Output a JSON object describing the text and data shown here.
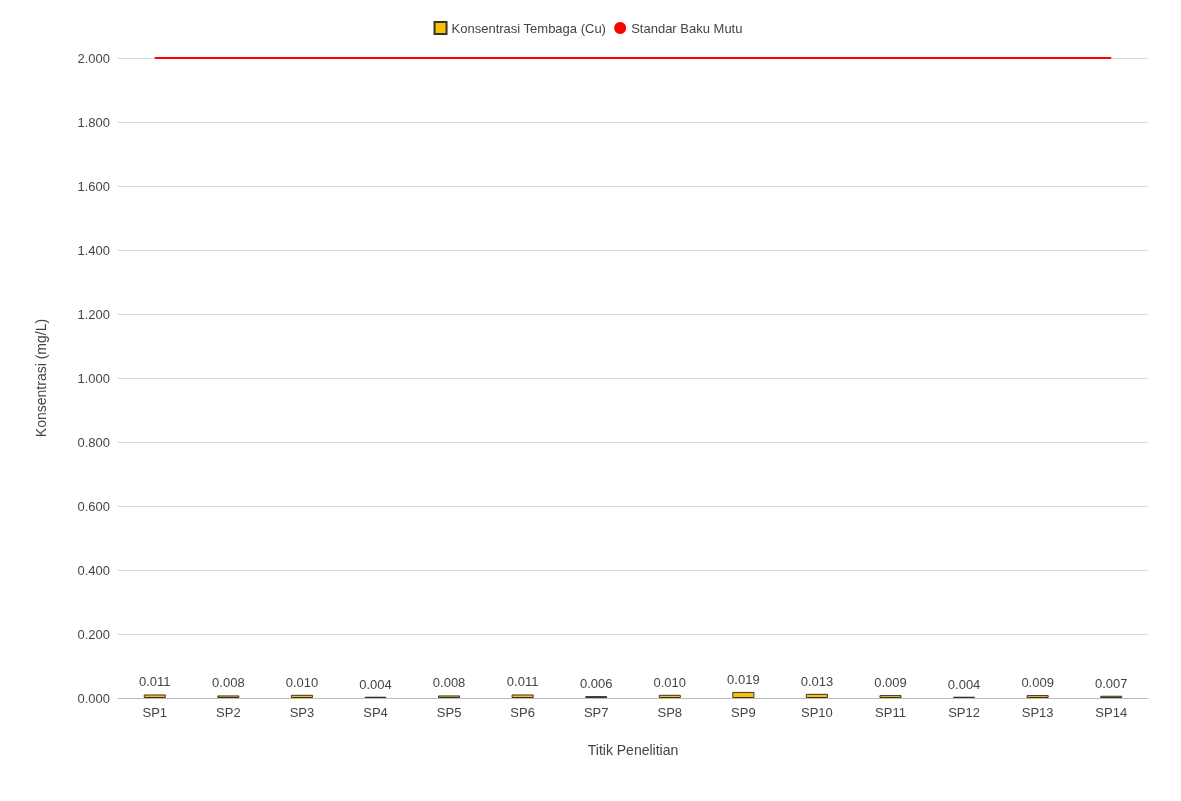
{
  "chart_data": {
    "type": "bar",
    "xlabel": "Titik Penelitian",
    "ylabel": "Konsentrasi (mg/L)",
    "categories": [
      "SP1",
      "SP2",
      "SP3",
      "SP4",
      "SP5",
      "SP6",
      "SP7",
      "SP8",
      "SP9",
      "SP10",
      "SP11",
      "SP12",
      "SP13",
      "SP14"
    ],
    "series": [
      {
        "name": "Konsentrasi Tembaga (Cu)",
        "color": "#ffc000",
        "values": [
          0.011,
          0.008,
          0.01,
          0.004,
          0.008,
          0.011,
          0.006,
          0.01,
          0.019,
          0.013,
          0.009,
          0.004,
          0.009,
          0.007
        ],
        "value_labels": [
          "0.011",
          "0.008",
          "0.010",
          "0.004",
          "0.008",
          "0.011",
          "0.006",
          "0.010",
          "0.019",
          "0.013",
          "0.009",
          "0.004",
          "0.009",
          "0.007"
        ]
      },
      {
        "name": "Standar Baku Mutu",
        "type": "line",
        "color": "#ff0000",
        "marker": "none",
        "line_style": "solid",
        "values": [
          2,
          2,
          2,
          2,
          2,
          2,
          2,
          2,
          2,
          2,
          2,
          2,
          2,
          2
        ]
      }
    ],
    "ylim": [
      0,
      2
    ],
    "yticks": [
      {
        "value": 0,
        "label": "0.000"
      },
      {
        "value": 0.2,
        "label": "0.200"
      },
      {
        "value": 0.4,
        "label": "0.400"
      },
      {
        "value": 0.6,
        "label": "0.600"
      },
      {
        "value": 0.8,
        "label": "0.800"
      },
      {
        "value": 1,
        "label": "1.000"
      },
      {
        "value": 1.2,
        "label": "1.200"
      },
      {
        "value": 1.4,
        "label": "1.400"
      },
      {
        "value": 1.6,
        "label": "1.600"
      },
      {
        "value": 1.8,
        "label": "1.800"
      },
      {
        "value": 2,
        "label": "2.000"
      }
    ],
    "grid": "y",
    "legend": "top"
  }
}
